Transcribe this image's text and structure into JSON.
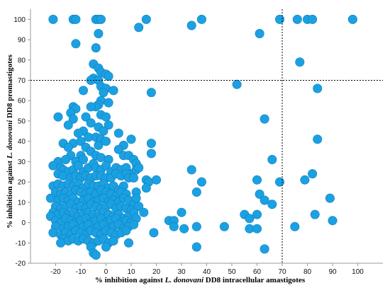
{
  "chart_data": {
    "type": "scatter",
    "title": "",
    "xlabel": {
      "prefix": "% inhibition  against ",
      "italic": "L. donovani",
      "suffix": " DD8 intracellular amastigotes"
    },
    "ylabel": {
      "prefix": "% inhibition  against ",
      "italic": "L. donovani",
      "suffix": " DD8 promastigotes"
    },
    "xlim": [
      -30,
      110
    ],
    "ylim": [
      -20,
      105
    ],
    "xticks": [
      -20,
      -10,
      0,
      10,
      20,
      30,
      40,
      50,
      60,
      70,
      80,
      90,
      100
    ],
    "yticks": [
      -20,
      -10,
      0,
      10,
      20,
      30,
      40,
      50,
      60,
      70,
      80,
      90,
      100
    ],
    "threshold_x": 70,
    "threshold_y": 70,
    "grid": false,
    "legend": "none",
    "marker_color": "#1ba1e2",
    "marker_edge_color": "#0c7fbe",
    "threshold_line_color": "#000000",
    "points": [
      [
        -21,
        100
      ],
      [
        -13,
        100
      ],
      [
        -12,
        100
      ],
      [
        -4,
        100
      ],
      [
        -3,
        100
      ],
      [
        -2,
        100
      ],
      [
        16,
        100
      ],
      [
        38,
        100
      ],
      [
        69,
        100
      ],
      [
        76,
        100
      ],
      [
        80,
        100
      ],
      [
        82,
        100
      ],
      [
        98,
        100
      ],
      [
        -3,
        93
      ],
      [
        13,
        96
      ],
      [
        34,
        97
      ],
      [
        61,
        93
      ],
      [
        -12,
        88
      ],
      [
        -4,
        86
      ],
      [
        77,
        79
      ],
      [
        -5,
        78
      ],
      [
        -3,
        76
      ],
      [
        -2,
        74
      ],
      [
        0,
        73
      ],
      [
        1,
        72
      ],
      [
        -5,
        71
      ],
      [
        -3,
        70
      ],
      [
        -6,
        70
      ],
      [
        -2,
        67
      ],
      [
        0,
        66
      ],
      [
        3,
        65
      ],
      [
        -9,
        65
      ],
      [
        -13,
        57
      ],
      [
        -1,
        64
      ],
      [
        18,
        64
      ],
      [
        52,
        68
      ],
      [
        84,
        66
      ],
      [
        -2,
        60
      ],
      [
        1,
        59
      ],
      [
        -3,
        58
      ],
      [
        -4,
        57
      ],
      [
        -6,
        57
      ],
      [
        -12,
        56
      ],
      [
        -14,
        54
      ],
      [
        -19,
        52
      ],
      [
        -8,
        52
      ],
      [
        -2,
        53
      ],
      [
        0,
        52
      ],
      [
        -13,
        51
      ],
      [
        63,
        51
      ],
      [
        -6,
        49
      ],
      [
        -3,
        47
      ],
      [
        1,
        48
      ],
      [
        -15,
        48
      ],
      [
        -9,
        45
      ],
      [
        -11,
        44
      ],
      [
        -1,
        45
      ],
      [
        5,
        44
      ],
      [
        -17,
        39
      ],
      [
        -13,
        39
      ],
      [
        -10,
        40
      ],
      [
        -7,
        42
      ],
      [
        -4,
        42
      ],
      [
        -2,
        41
      ],
      [
        -3,
        38
      ],
      [
        0,
        40
      ],
      [
        7,
        38
      ],
      [
        10,
        41
      ],
      [
        18,
        39
      ],
      [
        -15,
        37
      ],
      [
        -8,
        37
      ],
      [
        5,
        36
      ],
      [
        84,
        41
      ],
      [
        -6,
        35
      ],
      [
        -4,
        33
      ],
      [
        -10,
        33
      ],
      [
        -14,
        33
      ],
      [
        -11,
        30
      ],
      [
        -19,
        30
      ],
      [
        -16,
        31
      ],
      [
        -12,
        30
      ],
      [
        -9,
        31
      ],
      [
        -2,
        32
      ],
      [
        1,
        31
      ],
      [
        7,
        33
      ],
      [
        9,
        33
      ],
      [
        11,
        31
      ],
      [
        18,
        34
      ],
      [
        12,
        29
      ],
      [
        66,
        31
      ],
      [
        -21,
        28
      ],
      [
        -18,
        27
      ],
      [
        -17,
        26
      ],
      [
        -15,
        25
      ],
      [
        -13,
        26
      ],
      [
        -11,
        28
      ],
      [
        -9,
        25
      ],
      [
        -7,
        27
      ],
      [
        -5,
        29
      ],
      [
        -4,
        27
      ],
      [
        -2,
        26
      ],
      [
        0,
        28
      ],
      [
        2,
        25
      ],
      [
        4,
        27
      ],
      [
        6,
        26
      ],
      [
        8,
        27
      ],
      [
        10,
        24
      ],
      [
        12,
        26
      ],
      [
        13,
        27
      ],
      [
        -19,
        24
      ],
      [
        -17,
        23
      ],
      [
        -14,
        22
      ],
      [
        -12,
        23
      ],
      [
        -10,
        22
      ],
      [
        -8,
        23
      ],
      [
        -6,
        22
      ],
      [
        -4,
        23
      ],
      [
        -2,
        23
      ],
      [
        0,
        22
      ],
      [
        2,
        22
      ],
      [
        4,
        24
      ],
      [
        6,
        23
      ],
      [
        8,
        24
      ],
      [
        9,
        22
      ],
      [
        11,
        22
      ],
      [
        16,
        21
      ],
      [
        17,
        20
      ],
      [
        20,
        21
      ],
      [
        34,
        26
      ],
      [
        38,
        20
      ],
      [
        60,
        21
      ],
      [
        69,
        20
      ],
      [
        79,
        21
      ],
      [
        82,
        24
      ],
      [
        -21,
        18
      ],
      [
        -19,
        19
      ],
      [
        -17,
        18
      ],
      [
        -15,
        19
      ],
      [
        -13,
        18
      ],
      [
        -11,
        19
      ],
      [
        -9,
        17
      ],
      [
        -7,
        19
      ],
      [
        -5,
        18
      ],
      [
        -3,
        18
      ],
      [
        -1,
        19
      ],
      [
        1,
        17
      ],
      [
        3,
        18
      ],
      [
        5,
        16
      ],
      [
        7,
        18
      ],
      [
        -20,
        15
      ],
      [
        -18,
        14
      ],
      [
        -16,
        15
      ],
      [
        -14,
        14
      ],
      [
        -12,
        16
      ],
      [
        -10,
        15
      ],
      [
        -8,
        14
      ],
      [
        -6,
        15
      ],
      [
        -4,
        14
      ],
      [
        -2,
        16
      ],
      [
        0,
        15
      ],
      [
        2,
        14
      ],
      [
        4,
        13
      ],
      [
        6,
        15
      ],
      [
        8,
        14
      ],
      [
        12,
        15
      ],
      [
        16,
        17
      ],
      [
        36,
        15
      ],
      [
        61,
        14
      ],
      [
        63,
        11
      ],
      [
        66,
        9
      ],
      [
        89,
        12
      ],
      [
        -22,
        12
      ],
      [
        -19,
        11
      ],
      [
        -17,
        12
      ],
      [
        -15,
        11
      ],
      [
        -13,
        12
      ],
      [
        -11,
        10
      ],
      [
        -9,
        11
      ],
      [
        -7,
        12
      ],
      [
        -5,
        10
      ],
      [
        -3,
        11
      ],
      [
        -1,
        12
      ],
      [
        1,
        10
      ],
      [
        3,
        11
      ],
      [
        5,
        10
      ],
      [
        7,
        12
      ],
      [
        9,
        11
      ],
      [
        11,
        9
      ],
      [
        12,
        12
      ],
      [
        -20,
        8
      ],
      [
        -18,
        7
      ],
      [
        -16,
        8
      ],
      [
        -14,
        9
      ],
      [
        -12,
        7
      ],
      [
        -10,
        8
      ],
      [
        -8,
        7
      ],
      [
        -6,
        9
      ],
      [
        -4,
        8
      ],
      [
        -2,
        7
      ],
      [
        0,
        8
      ],
      [
        2,
        9
      ],
      [
        4,
        7
      ],
      [
        6,
        8
      ],
      [
        8,
        7
      ],
      [
        10,
        6
      ],
      [
        13,
        8
      ],
      [
        -21,
        5
      ],
      [
        -19,
        4
      ],
      [
        -17,
        5
      ],
      [
        -15,
        4
      ],
      [
        -13,
        5
      ],
      [
        -11,
        3
      ],
      [
        -9,
        4
      ],
      [
        -7,
        5
      ],
      [
        -5,
        4
      ],
      [
        -3,
        3
      ],
      [
        -1,
        5
      ],
      [
        1,
        4
      ],
      [
        3,
        3
      ],
      [
        5,
        4
      ],
      [
        7,
        2
      ],
      [
        9,
        3
      ],
      [
        11,
        5
      ],
      [
        15,
        5
      ],
      [
        30,
        5
      ],
      [
        55,
        4
      ],
      [
        57,
        2
      ],
      [
        60,
        4
      ],
      [
        83,
        4
      ],
      [
        -22,
        3
      ],
      [
        -20,
        1
      ],
      [
        -18,
        0
      ],
      [
        -16,
        2
      ],
      [
        -14,
        1
      ],
      [
        -12,
        0
      ],
      [
        -10,
        1
      ],
      [
        -8,
        2
      ],
      [
        -6,
        0
      ],
      [
        -4,
        1
      ],
      [
        -2,
        2
      ],
      [
        0,
        0
      ],
      [
        2,
        1
      ],
      [
        4,
        2
      ],
      [
        6,
        0
      ],
      [
        8,
        1
      ],
      [
        10,
        0
      ],
      [
        12,
        2
      ],
      [
        25,
        1
      ],
      [
        27,
        1
      ],
      [
        90,
        1
      ],
      [
        -20,
        -2
      ],
      [
        -17,
        -3
      ],
      [
        -15,
        -2
      ],
      [
        -13,
        -1
      ],
      [
        -11,
        -3
      ],
      [
        -9,
        -2
      ],
      [
        -7,
        -1
      ],
      [
        -5,
        -3
      ],
      [
        -3,
        -2
      ],
      [
        -1,
        -1
      ],
      [
        1,
        -3
      ],
      [
        3,
        -2
      ],
      [
        5,
        -1
      ],
      [
        7,
        -3
      ],
      [
        9,
        -2
      ],
      [
        11,
        -1
      ],
      [
        27,
        -2
      ],
      [
        31,
        -3
      ],
      [
        36,
        -2
      ],
      [
        47,
        -2
      ],
      [
        57,
        -3
      ],
      [
        60,
        -3
      ],
      [
        75,
        -2
      ],
      [
        -21,
        -5
      ],
      [
        -18,
        -6
      ],
      [
        -16,
        -5
      ],
      [
        -14,
        -6
      ],
      [
        -12,
        -4
      ],
      [
        -10,
        -5
      ],
      [
        -8,
        -6
      ],
      [
        -6,
        -4
      ],
      [
        -4,
        -5
      ],
      [
        -2,
        -6
      ],
      [
        0,
        -4
      ],
      [
        2,
        -5
      ],
      [
        4,
        -6
      ],
      [
        6,
        -5
      ],
      [
        8,
        -4
      ],
      [
        19,
        -5
      ],
      [
        -17,
        -8
      ],
      [
        -15,
        -9
      ],
      [
        -13,
        -8
      ],
      [
        -11,
        -9
      ],
      [
        -9,
        -8
      ],
      [
        -7,
        -9
      ],
      [
        -5,
        -10
      ],
      [
        -3,
        -9
      ],
      [
        -1,
        -8
      ],
      [
        1,
        -10
      ],
      [
        3,
        -9
      ],
      [
        9,
        -10
      ],
      [
        -18,
        -10
      ],
      [
        -6,
        -12
      ],
      [
        0,
        -12
      ],
      [
        36,
        -12
      ],
      [
        63,
        -13
      ],
      [
        -5,
        -15
      ],
      [
        -4,
        -16
      ]
    ]
  }
}
